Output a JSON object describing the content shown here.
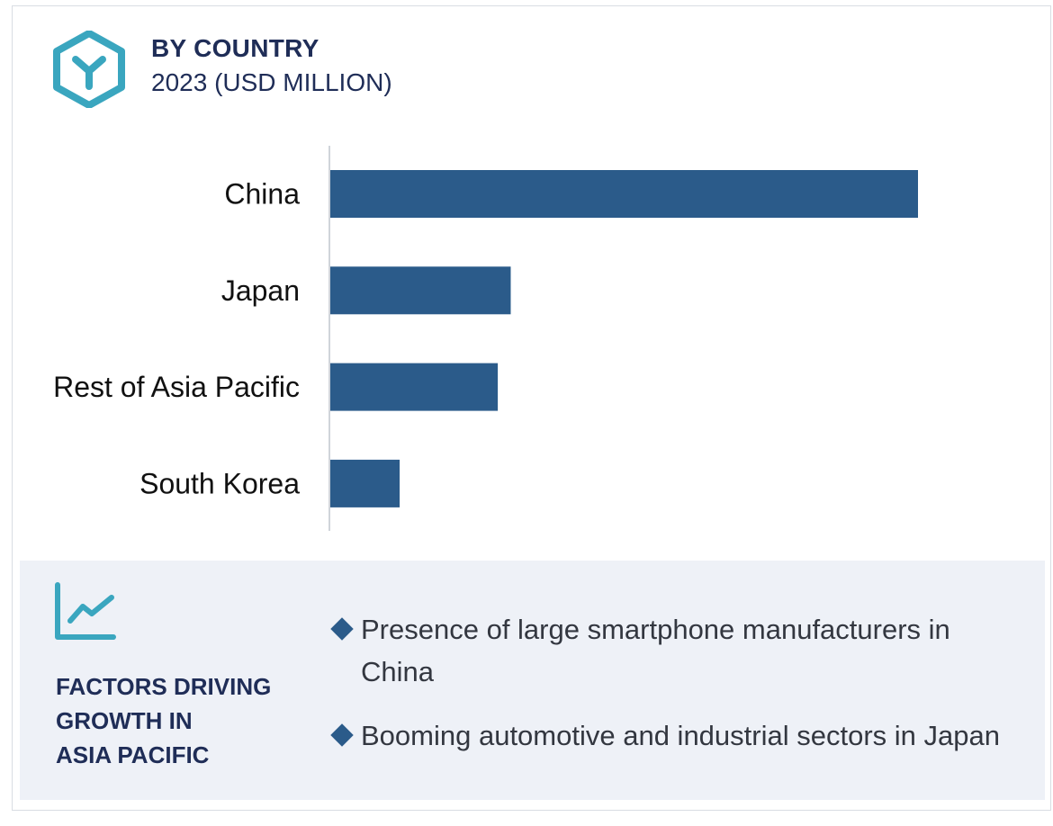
{
  "header": {
    "title": "BY COUNTRY",
    "subtitle": "2023 (USD MILLION)",
    "logo_icon": "hexagon-y-logo-icon"
  },
  "chart_data": {
    "type": "bar",
    "orientation": "horizontal",
    "title": "BY COUNTRY",
    "subtitle": "2023 (USD MILLION)",
    "categories": [
      "China",
      "Japan",
      "Rest of Asia Pacific",
      "South Korea"
    ],
    "values": [
      100,
      30.7,
      28.5,
      11.8
    ],
    "value_note": "relative bar lengths; no value labels shown",
    "xlim": [
      0,
      100
    ],
    "bar_color": "#2b5b8a",
    "axis_color": "#d0d4da",
    "label_color": "#111111",
    "grid": false
  },
  "factors": {
    "icon": "trend-chart-icon",
    "title_lines": [
      "FACTORS DRIVING",
      "GROWTH IN",
      "ASIA PACIFIC"
    ],
    "items": [
      "Presence of large smartphone manufacturers in China",
      "Booming automotive and industrial sectors in Japan"
    ]
  },
  "colors": {
    "title": "#1f2d57",
    "accent": "#3aa6bf",
    "bar": "#2b5b8a",
    "panel_bg": "#eef1f7"
  }
}
